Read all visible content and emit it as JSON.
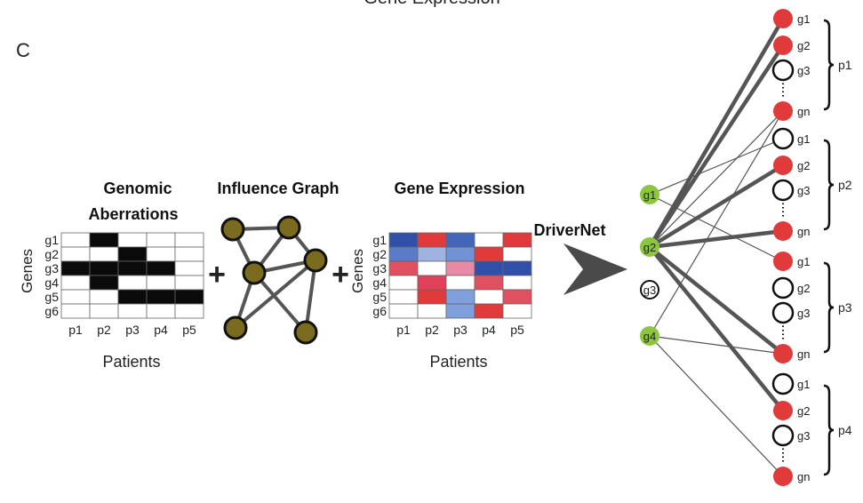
{
  "top_partial_title": "Gene Expression",
  "panel_letter": "C",
  "genomic": {
    "title_line1": "Genomic",
    "title_line2": "Aberrations",
    "genes_label": "Genes",
    "patients_label": "Patients",
    "rows": [
      "g1",
      "g2",
      "g3",
      "g4",
      "g5",
      "g6"
    ],
    "cols": [
      "p1",
      "p2",
      "p3",
      "p4",
      "p5"
    ],
    "matrix": [
      [
        0,
        1,
        0,
        0,
        0
      ],
      [
        0,
        0,
        1,
        0,
        0
      ],
      [
        1,
        1,
        1,
        1,
        0
      ],
      [
        0,
        1,
        0,
        0,
        0
      ],
      [
        0,
        0,
        1,
        1,
        1
      ],
      [
        0,
        0,
        0,
        0,
        0
      ]
    ]
  },
  "plus_symbol": "+",
  "influence": {
    "title": "Influence Graph",
    "node_color": "#7a6b1e"
  },
  "expression": {
    "title": "Gene Expression",
    "genes_label": "Genes",
    "patients_label": "Patients",
    "rows": [
      "g1",
      "g2",
      "g3",
      "g4",
      "g5",
      "g6"
    ],
    "cols": [
      "p1",
      "p2",
      "p3",
      "p4",
      "p5"
    ],
    "colors": [
      [
        "#2f4fa8",
        "#e03a3a",
        "#4466b8",
        "#ffffff",
        "#e03a3a"
      ],
      [
        "#5a7cc8",
        "#9fb2e0",
        "#6f93d4",
        "#e03a3a",
        "#ffffff"
      ],
      [
        "#e05060",
        "#ffffff",
        "#e88aa6",
        "#2f4fa8",
        "#2f4fa8"
      ],
      [
        "#ffffff",
        "#e0405a",
        "#ffffff",
        "#e05060",
        "#ffffff"
      ],
      [
        "#ffffff",
        "#e03a3a",
        "#7fa0dc",
        "#ffffff",
        "#e05060"
      ],
      [
        "#ffffff",
        "#ffffff",
        "#7fa0dc",
        "#e03a3a",
        "#ffffff"
      ]
    ]
  },
  "drivernet_label": "DriverNet",
  "bipartite": {
    "green": "#8cc63f",
    "red": "#e03a3a",
    "left_nodes": [
      "g1",
      "g2",
      "g3",
      "g4"
    ],
    "groups": [
      {
        "label": "p1",
        "nodes": [
          {
            "name": "g1",
            "red": true
          },
          {
            "name": "g2",
            "red": true
          },
          {
            "name": "g3",
            "red": false
          },
          {
            "name": "gn",
            "red": true
          }
        ]
      },
      {
        "label": "p2",
        "nodes": [
          {
            "name": "g1",
            "red": false
          },
          {
            "name": "g2",
            "red": true
          },
          {
            "name": "g3",
            "red": false
          },
          {
            "name": "gn",
            "red": true
          }
        ]
      },
      {
        "label": "p3",
        "nodes": [
          {
            "name": "g1",
            "red": true
          },
          {
            "name": "g2",
            "red": false
          },
          {
            "name": "g3",
            "red": false
          },
          {
            "name": "gn",
            "red": true
          }
        ]
      },
      {
        "label": "p4",
        "nodes": [
          {
            "name": "g1",
            "red": false
          },
          {
            "name": "g2",
            "red": true
          },
          {
            "name": "g3",
            "red": false
          },
          {
            "name": "gn",
            "red": true
          }
        ]
      }
    ]
  }
}
